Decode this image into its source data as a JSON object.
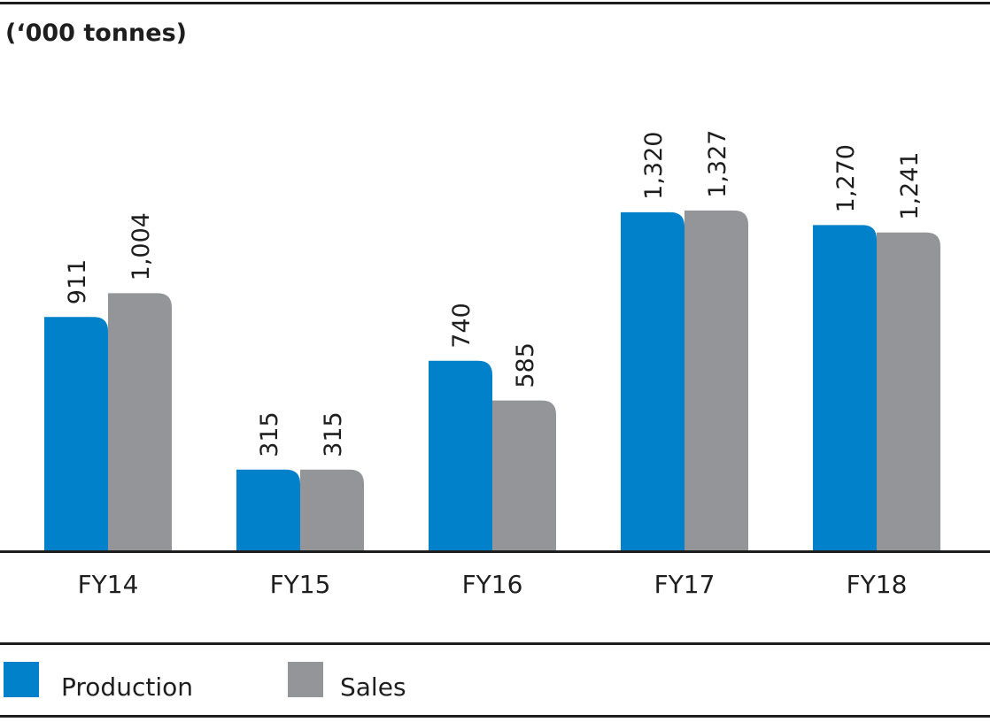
{
  "unit_label": "(‘000 tonnes)",
  "colors": {
    "production": "#0081c9",
    "sales": "#939598",
    "text": "#1e1e1e",
    "rule": "#1e1e1e"
  },
  "legend": {
    "production_label": "Production",
    "sales_label": "Sales"
  },
  "chart_data": {
    "type": "bar",
    "title": "",
    "xlabel": "",
    "ylabel": "(‘000 tonnes)",
    "categories": [
      "FY14",
      "FY15",
      "FY16",
      "FY17",
      "FY18"
    ],
    "series": [
      {
        "name": "Production",
        "values": [
          911,
          315,
          740,
          1320,
          1270
        ],
        "labels": [
          "911",
          "315",
          "740",
          "1,320",
          "1,270"
        ],
        "color": "#0081c9"
      },
      {
        "name": "Sales",
        "values": [
          1004,
          315,
          585,
          1327,
          1241
        ],
        "labels": [
          "1,004",
          "315",
          "585",
          "1,327",
          "1,241"
        ],
        "color": "#939598"
      }
    ],
    "ylim": [
      0,
      1600
    ],
    "grid": false,
    "data_labels": "rotated-vertical",
    "legend_position": "bottom-left"
  }
}
